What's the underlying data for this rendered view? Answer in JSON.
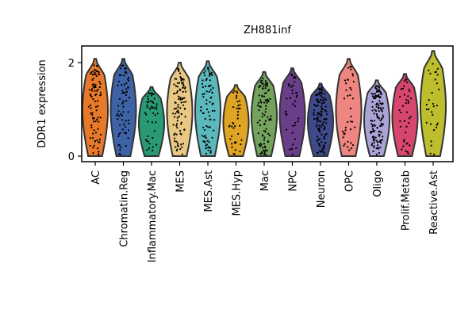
{
  "chart_data": {
    "type": "violin",
    "title": "ZH881inf",
    "xlabel": "",
    "ylabel": "DDR1 expression",
    "ylim": [
      -0.1,
      2.35
    ],
    "yticks": [
      0,
      2
    ],
    "grid": false,
    "categories": [
      "AC",
      "Chromatin.Reg",
      "Inflammatory.Mac",
      "MES",
      "MES.Ast",
      "MES.Hyp",
      "Mac",
      "NPC",
      "Neuron",
      "OPC",
      "Oligo",
      "Prolif.Metab",
      "Reactive.Ast"
    ],
    "colors": [
      "#e8792a",
      "#3d63a6",
      "#2a9a76",
      "#e8c882",
      "#5bb8bd",
      "#e0a424",
      "#74a35d",
      "#6b3e8a",
      "#3e4a8c",
      "#ee8580",
      "#a9a3d6",
      "#d6466d",
      "#bcbe2e"
    ],
    "series": [
      {
        "name": "AC",
        "max": 2.08,
        "points": 90
      },
      {
        "name": "Chromatin.Reg",
        "max": 2.08,
        "points": 70
      },
      {
        "name": "Inflammatory.Mac",
        "max": 1.48,
        "points": 45
      },
      {
        "name": "MES",
        "max": 2.0,
        "points": 100
      },
      {
        "name": "MES.Ast",
        "max": 2.03,
        "points": 80
      },
      {
        "name": "MES.Hyp",
        "max": 1.52,
        "points": 40
      },
      {
        "name": "Mac",
        "max": 1.8,
        "points": 95
      },
      {
        "name": "NPC",
        "max": 1.88,
        "points": 40
      },
      {
        "name": "Neuron",
        "max": 1.55,
        "points": 120
      },
      {
        "name": "OPC",
        "max": 2.08,
        "points": 40
      },
      {
        "name": "Oligo",
        "max": 1.62,
        "points": 130
      },
      {
        "name": "Prolif.Metab",
        "max": 1.76,
        "points": 40
      },
      {
        "name": "Reactive.Ast",
        "max": 2.25,
        "points": 30
      }
    ]
  }
}
